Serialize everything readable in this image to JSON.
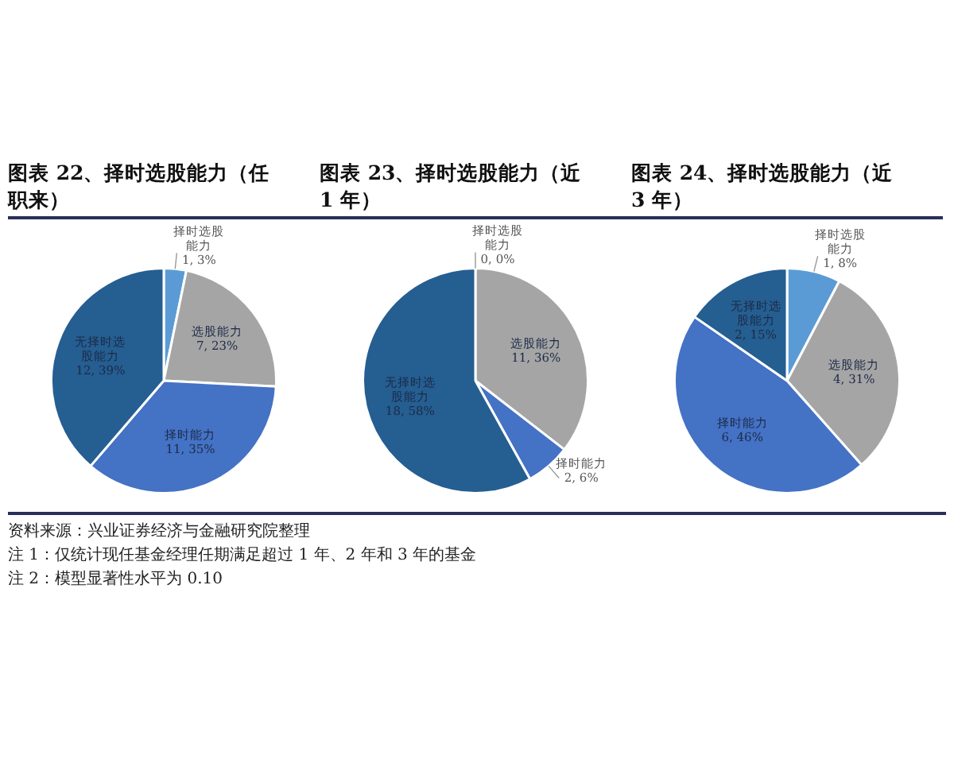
{
  "chart_data": [
    {
      "type": "pie",
      "title": "图表 22、择时选股能力（任职来）",
      "categories": [
        "择时选股能力",
        "选股能力",
        "择时能力",
        "无择时选股能力"
      ],
      "values": [
        1,
        7,
        11,
        12
      ],
      "colors": [
        "#5b9bd5",
        "#a5a5a5",
        "#4472c4",
        "#255e91"
      ],
      "value_labels": [
        "1, 3%",
        "7, 23%",
        "11, 35%",
        "12, 39%"
      ],
      "annotations": [
        "资料来源：兴业证券经济与金融研究院整理",
        "注 1：仅统计现任基金经理任期满足超过 1 年、2 年和 3 年的基金",
        "注 2：模型显著性水平为 0.10"
      ]
    },
    {
      "type": "pie",
      "title": "图表 23、择时选股能力（近 1 年）",
      "categories": [
        "择时选股能力",
        "选股能力",
        "择时能力",
        "无择时选股能力"
      ],
      "values": [
        0,
        11,
        2,
        18
      ],
      "colors": [
        "#5b9bd5",
        "#a5a5a5",
        "#4472c4",
        "#255e91"
      ],
      "value_labels": [
        "0, 0%",
        "11, 36%",
        "2, 6%",
        "18, 58%"
      ]
    },
    {
      "type": "pie",
      "title": "图表 24、择时选股能力（近 3 年）",
      "categories": [
        "择时选股能力",
        "选股能力",
        "择时能力",
        "无择时选股能力"
      ],
      "values": [
        1,
        4,
        6,
        2
      ],
      "colors": [
        "#5b9bd5",
        "#a5a5a5",
        "#4472c4",
        "#255e91"
      ],
      "value_labels": [
        "1, 8%",
        "4, 31%",
        "6, 46%",
        "2, 15%"
      ]
    }
  ]
}
